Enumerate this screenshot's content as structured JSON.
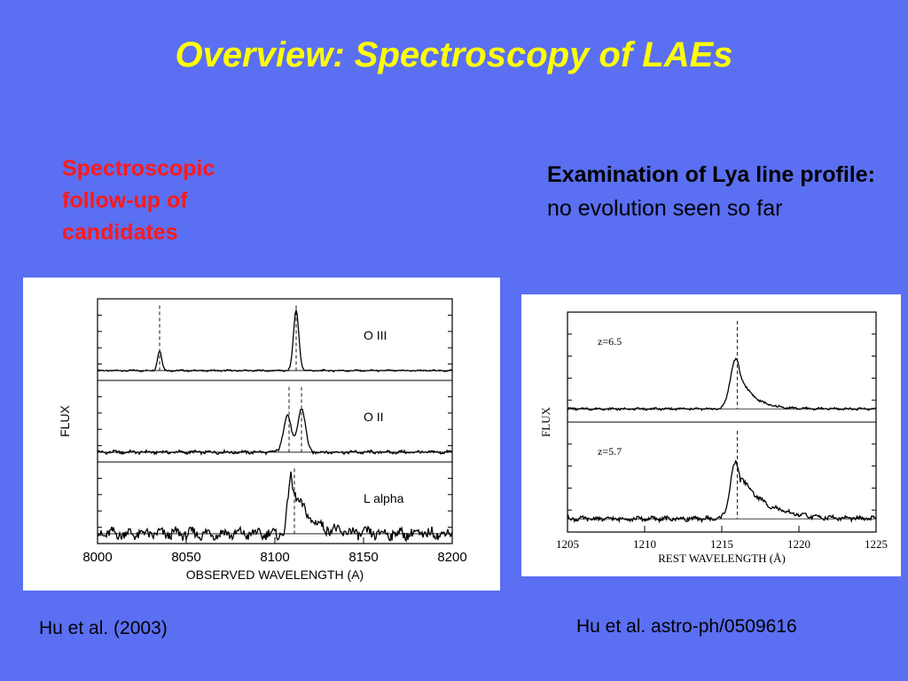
{
  "slide": {
    "title": "Overview: Spectroscopy of LAEs",
    "left_text": "Spectroscopic follow-up of candidates",
    "right_text_bold": "Examination of Lya line profile:",
    "right_text_normal": " no evolution seen so far",
    "left_citation": "Hu et al. (2003)",
    "right_citation": "Hu et al. astro-ph/0509616",
    "colors": {
      "background": "#5b6ff2",
      "title": "#ffff00",
      "left_text": "#ff1a1a"
    }
  },
  "chart_data": [
    {
      "type": "line",
      "ylabel": "FLUX",
      "xlabel": "OBSERVED WAVELENGTH (A)",
      "x_ticks": [
        "8000",
        "8050",
        "8100",
        "8150",
        "8200"
      ],
      "xlim": [
        8000,
        8200
      ],
      "panels": [
        {
          "label": "O III",
          "lines": [
            8035,
            8112
          ],
          "peaks": [
            {
              "x": 8035,
              "h": 0.3,
              "w": 1.2
            },
            {
              "x": 8112,
              "h": 0.9,
              "w": 1.5
            }
          ],
          "noise": 0.01
        },
        {
          "label": "O II",
          "lines": [
            8108,
            8115
          ],
          "peaks": [
            {
              "x": 8107,
              "h": 0.55,
              "w": 2.2
            },
            {
              "x": 8115,
              "h": 0.65,
              "w": 2.2
            }
          ],
          "noise": 0.02
        },
        {
          "label": "L alpha",
          "lines": [
            8111
          ],
          "peaks": [
            {
              "x": 8109,
              "h": 0.85,
              "w": 1.6,
              "tail": 9
            }
          ],
          "noise": 0.07
        }
      ]
    },
    {
      "type": "line",
      "ylabel": "FLUX",
      "xlabel": "REST WAVELENGTH (Å)",
      "x_ticks": [
        "1205",
        "1210",
        "1215",
        "1220",
        "1225"
      ],
      "xlim": [
        1205,
        1225
      ],
      "panels": [
        {
          "label": "z=6.5",
          "lines": [
            1216
          ],
          "peaks": [
            {
              "x": 1215.9,
              "h": 0.55,
              "w": 0.35,
              "tail": 0.9
            }
          ],
          "noise": 0.01
        },
        {
          "label": "z=5.7",
          "lines": [
            1216
          ],
          "peaks": [
            {
              "x": 1215.9,
              "h": 0.62,
              "w": 0.35,
              "tail": 1.6
            }
          ],
          "noise": 0.02
        }
      ]
    }
  ]
}
